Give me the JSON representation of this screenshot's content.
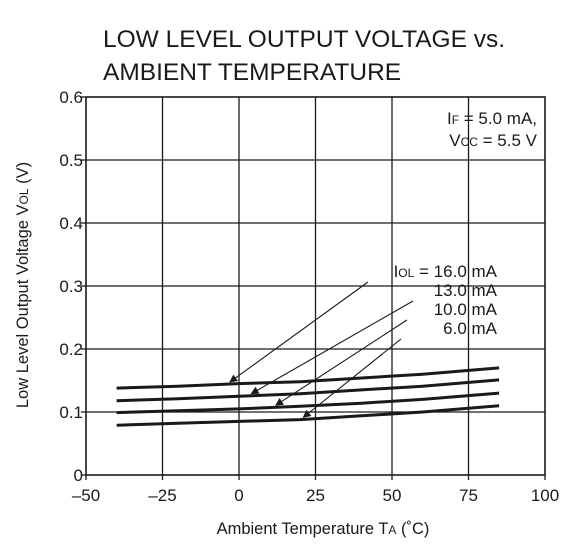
{
  "chart_data": {
    "type": "line",
    "title": [
      "LOW LEVEL OUTPUT VOLTAGE vs.",
      "AMBIENT TEMPERATURE"
    ],
    "xlabel": {
      "main": "Ambient Temperature  T",
      "sub": "A",
      "unit": " (˚C)"
    },
    "ylabel": {
      "main": "Low Level Output Voltage  V",
      "sub": "OL",
      "unit": " (V)"
    },
    "xlim": [
      -50,
      100
    ],
    "ylim": [
      0,
      0.6
    ],
    "x_ticks": [
      -50,
      -25,
      0,
      25,
      50,
      75,
      100
    ],
    "x_tick_labels": [
      "–50",
      "–25",
      "0",
      "25",
      "50",
      "75",
      "100"
    ],
    "y_ticks": [
      0,
      0.1,
      0.2,
      0.3,
      0.4,
      0.5,
      0.6
    ],
    "y_tick_labels": [
      "0",
      "0.1",
      "0.2",
      "0.3",
      "0.4",
      "0.5",
      "0.6"
    ],
    "grid": true,
    "conditions": [
      {
        "main": "I",
        "sub": "F",
        "rest": " = 5.0 mA,"
      },
      {
        "main": "V",
        "sub": "CC",
        "rest": " = 5.5 V"
      }
    ],
    "series": [
      {
        "name": "16.0 mA",
        "label": {
          "main": "I",
          "sub": "OL",
          "rest": " = 16.0 mA"
        },
        "x": [
          -40,
          -20,
          0,
          20,
          40,
          60,
          85
        ],
        "y": [
          0.138,
          0.141,
          0.145,
          0.148,
          0.154,
          0.16,
          0.17
        ],
        "arrow_to_x": -3
      },
      {
        "name": "13.0 mA",
        "label": {
          "main": "",
          "sub": "",
          "rest": "13.0 mA"
        },
        "x": [
          -40,
          -20,
          0,
          20,
          40,
          60,
          85
        ],
        "y": [
          0.118,
          0.121,
          0.125,
          0.129,
          0.135,
          0.141,
          0.151
        ],
        "arrow_to_x": 4
      },
      {
        "name": "10.0 mA",
        "label": {
          "main": "",
          "sub": "",
          "rest": "10.0 mA"
        },
        "x": [
          -40,
          -20,
          0,
          20,
          40,
          60,
          85
        ],
        "y": [
          0.099,
          0.102,
          0.105,
          0.109,
          0.114,
          0.12,
          0.13
        ],
        "arrow_to_x": 12
      },
      {
        "name": "6.0 mA",
        "label": {
          "main": "",
          "sub": "",
          "rest": "6.0 mA"
        },
        "x": [
          -40,
          -20,
          0,
          20,
          40,
          60,
          85
        ],
        "y": [
          0.079,
          0.082,
          0.085,
          0.088,
          0.094,
          0.1,
          0.11
        ],
        "arrow_to_x": 21
      }
    ],
    "colors": {
      "ink": "#1a1a1a",
      "background": "#ffffff"
    }
  }
}
